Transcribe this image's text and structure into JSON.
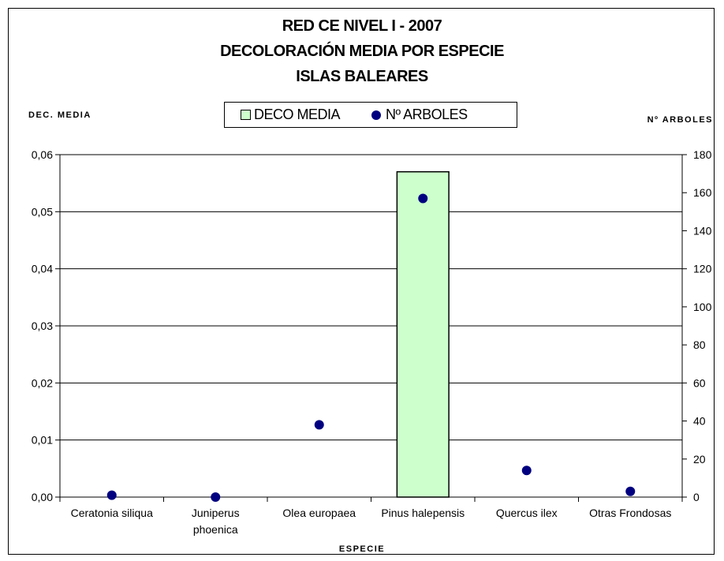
{
  "colors": {
    "bar_fill": "#ccffcc",
    "bar_stroke": "#000000",
    "dot_fill": "#000080",
    "grid": "#000000"
  },
  "chart_data": {
    "type": "bar",
    "title_lines": [
      "RED CE NIVEL I - 2007",
      "DECOLORACIÓN MEDIA POR ESPECIE",
      "ISLAS BALEARES"
    ],
    "xlabel": "ESPECIE",
    "ylabel": "DEC. MEDIA",
    "y2label": "Nº ARBOLES",
    "legend_placement": "top-center",
    "grid": true,
    "ylim": [
      0,
      0.06
    ],
    "y2lim": [
      0,
      180
    ],
    "yticks": [
      "0,00",
      "0,01",
      "0,02",
      "0,03",
      "0,04",
      "0,05",
      "0,06"
    ],
    "y2ticks": [
      "0",
      "20",
      "40",
      "60",
      "80",
      "100",
      "120",
      "140",
      "160",
      "180"
    ],
    "categories": [
      [
        "Ceratonia siliqua"
      ],
      [
        "Juniperus",
        "phoenica"
      ],
      [
        "Olea europaea"
      ],
      [
        "Pinus halepensis"
      ],
      [
        "Quercus ilex"
      ],
      [
        "Otras Frondosas"
      ]
    ],
    "series": [
      {
        "name": "DECO MEDIA",
        "type": "bar",
        "axis": "left",
        "values": [
          0,
          0,
          0,
          0.057,
          0,
          0
        ]
      },
      {
        "name": "Nº ARBOLES",
        "type": "scatter",
        "axis": "right",
        "values": [
          1,
          0,
          38,
          157,
          14,
          3
        ]
      }
    ]
  }
}
